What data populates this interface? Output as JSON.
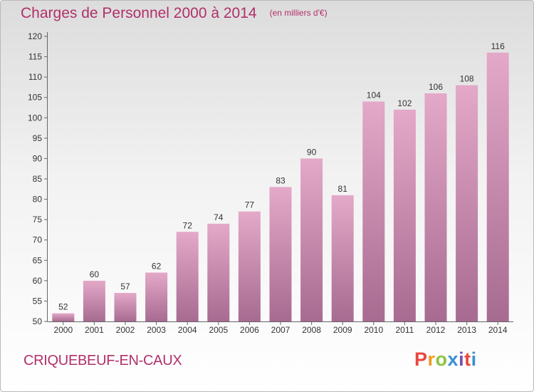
{
  "title": "Charges de Personnel 2000 à 2014",
  "subtitle": "(en milliers d'€)",
  "commune": "CRIQUEBEUF-EN-CAUX",
  "logo": {
    "parts": [
      "P",
      "r",
      "o",
      "x",
      "i",
      "t",
      "i"
    ]
  },
  "colors": {
    "title": "#b0306a",
    "bar_top": "#e4a8c8",
    "bar_bottom": "#a76b91",
    "axis": "#555555"
  },
  "chart_data": {
    "type": "bar",
    "categories": [
      "2000",
      "2001",
      "2002",
      "2003",
      "2004",
      "2005",
      "2006",
      "2007",
      "2008",
      "2009",
      "2010",
      "2011",
      "2012",
      "2013",
      "2014"
    ],
    "values": [
      52,
      60,
      57,
      62,
      72,
      74,
      77,
      83,
      90,
      81,
      104,
      102,
      106,
      108,
      116
    ],
    "title": "Charges de Personnel 2000 à 2014",
    "subtitle": "(en milliers d'€)",
    "ylim": [
      50,
      120
    ],
    "yticks": [
      50,
      55,
      60,
      65,
      70,
      75,
      80,
      85,
      90,
      95,
      100,
      105,
      110,
      115,
      120
    ],
    "grid": false,
    "data_labels": true
  }
}
